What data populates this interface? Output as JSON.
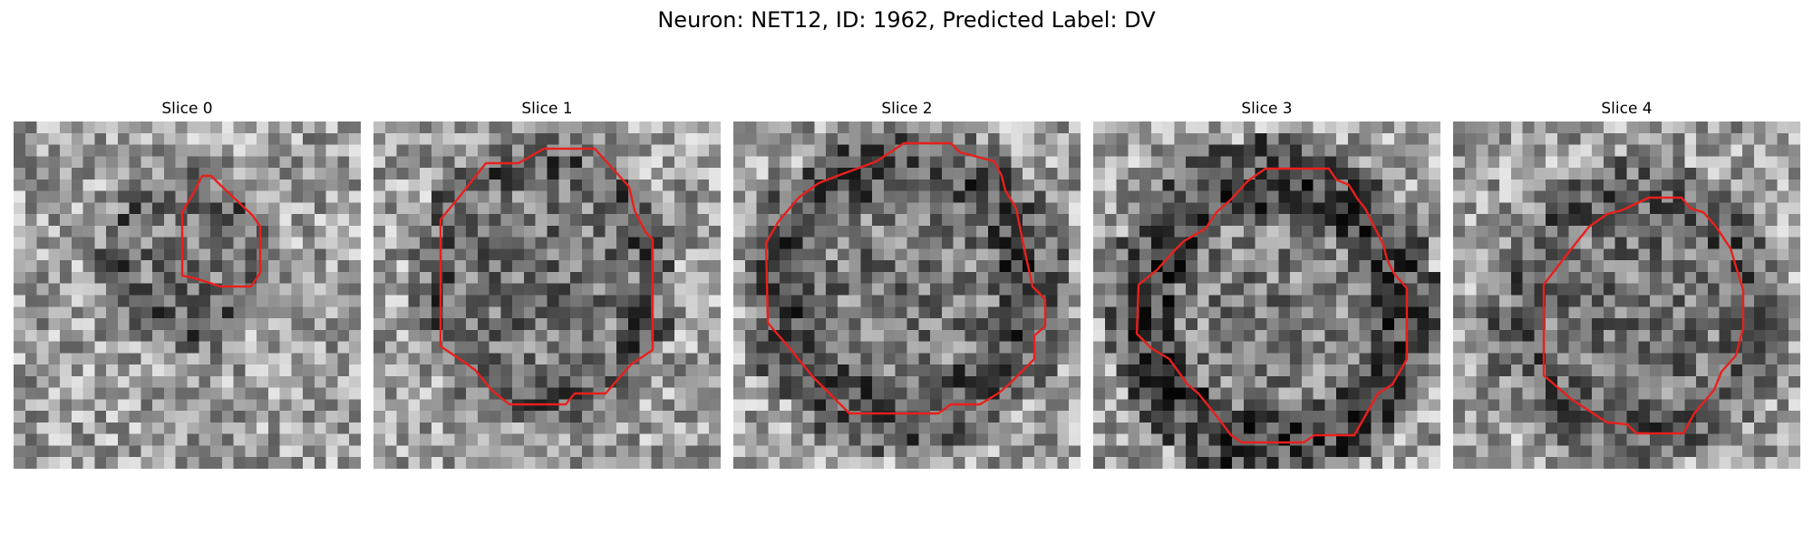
{
  "figure": {
    "title": "Neuron: NET12, ID: 1962, Predicted Label: DV",
    "contour_color": "#e8201c",
    "panels": [
      {
        "title": "Slice 0",
        "image": "grayscale-noise-crop",
        "contour": "small-outline"
      },
      {
        "title": "Slice 1",
        "image": "grayscale-noise-crop",
        "contour": "large-outline"
      },
      {
        "title": "Slice 2",
        "image": "grayscale-noise-crop",
        "contour": "large-outline"
      },
      {
        "title": "Slice 3",
        "image": "grayscale-noise-crop",
        "contour": "large-outline"
      },
      {
        "title": "Slice 4",
        "image": "grayscale-noise-crop",
        "contour": "large-outline"
      }
    ]
  }
}
